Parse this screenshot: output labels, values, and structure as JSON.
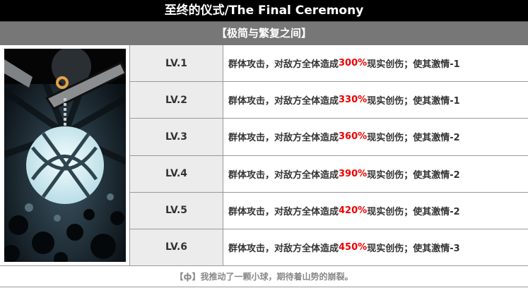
{
  "title": "至终的仪式/The Final Ceremony",
  "subtitle": "【极简与繁复之间】",
  "levels": [
    {
      "level": "LV.1",
      "pre": "群体攻击，对敌方全体造成",
      "pct": "300%",
      "post": "现实创伤；使其激情-1"
    },
    {
      "level": "LV.2",
      "pre": "群体攻击，对敌方全体造成",
      "pct": "330%",
      "post": "现实创伤；使其激情-1"
    },
    {
      "level": "LV.3",
      "pre": "群体攻击，对敌方全体造成",
      "pct": "360%",
      "post": "现实创伤；使其激情-2"
    },
    {
      "level": "LV.4",
      "pre": "群体攻击，对敌方全体造成",
      "pct": "390%",
      "post": "现实创伤；使其激情-2"
    },
    {
      "level": "LV.5",
      "pre": "群体攻击，对敌方全体造成",
      "pct": "420%",
      "post": "现实创伤；使其激情-2"
    },
    {
      "level": "LV.6",
      "pre": "群体攻击，对敌方全体造成",
      "pct": "450%",
      "post": "现实创伤；使其激情-3"
    }
  ],
  "footer": "【ф】我推动了一颗小球，期待着山势的崩裂。",
  "colors": {
    "highlight": "#e00000",
    "header": "#000000",
    "subheader": "#777777"
  }
}
